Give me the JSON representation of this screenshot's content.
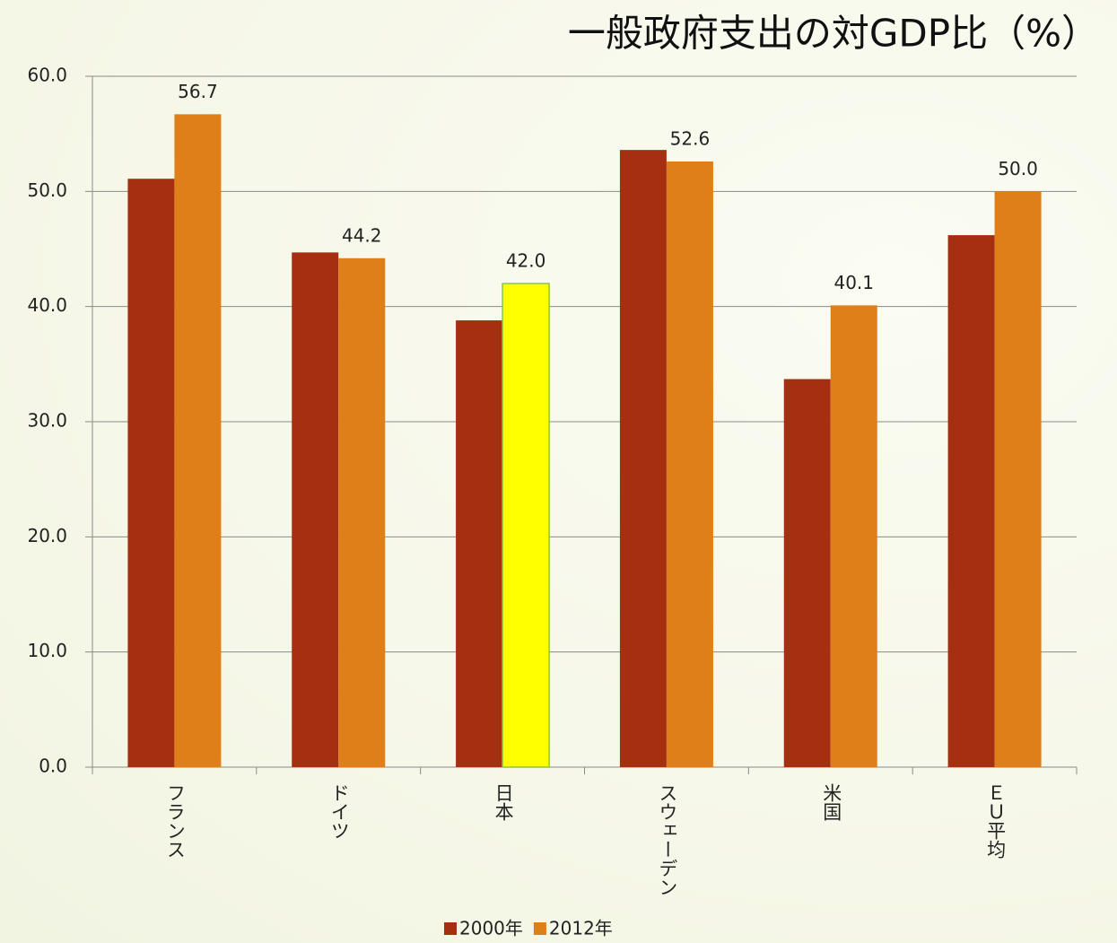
{
  "chart_data": {
    "type": "bar",
    "title": "一般政府支出の対GDP比（%）",
    "categories": [
      "フランス",
      "ドイツ",
      "日本",
      "スウェーデン",
      "米国",
      "ＥＵ平均"
    ],
    "series": [
      {
        "name": "2000年",
        "color": "#a52f10",
        "values": [
          51.1,
          44.7,
          38.8,
          53.6,
          33.7,
          46.2
        ]
      },
      {
        "name": "2012年",
        "color": "#df7f1a",
        "values": [
          56.7,
          44.2,
          42.0,
          52.6,
          40.1,
          50.0
        ],
        "value_labels": [
          "56.7",
          "44.2",
          "42.0",
          "52.6",
          "40.1",
          "50.0"
        ],
        "point_colors": [
          null,
          null,
          "#ffff00",
          null,
          null,
          null
        ]
      }
    ],
    "ylim": [
      0,
      60
    ],
    "yticks": [
      {
        "value": 0,
        "label": "0.0"
      },
      {
        "value": 10,
        "label": "10.0"
      },
      {
        "value": 20,
        "label": "20.0"
      },
      {
        "value": 30,
        "label": "30.0"
      },
      {
        "value": 40,
        "label": "40.0"
      },
      {
        "value": 50,
        "label": "50.0"
      },
      {
        "value": 60,
        "label": "60.0"
      }
    ],
    "grid": true,
    "legend": "bottom"
  }
}
